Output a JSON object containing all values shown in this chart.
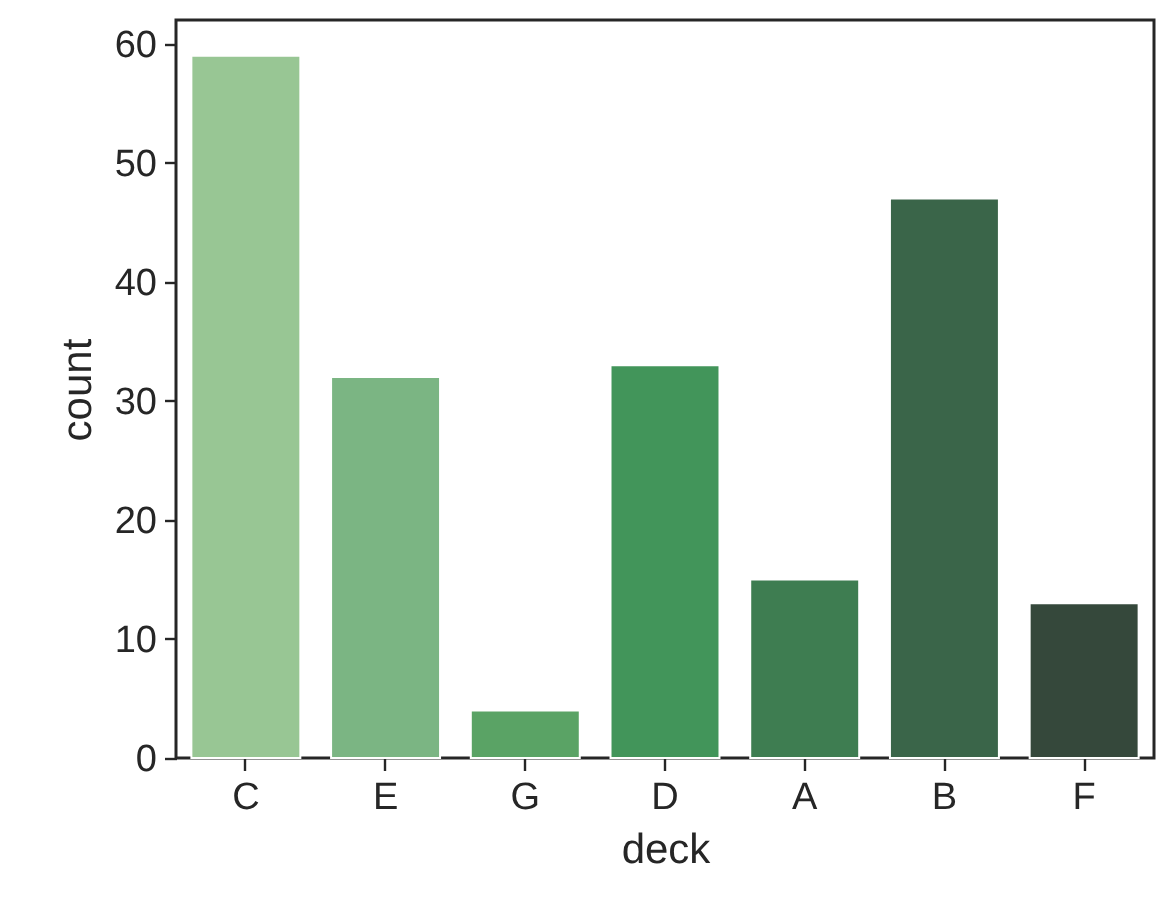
{
  "chart_data": {
    "type": "bar",
    "xlabel": "deck",
    "ylabel": "count",
    "categories": [
      "C",
      "E",
      "G",
      "D",
      "A",
      "B",
      "F"
    ],
    "values": [
      59,
      32,
      4,
      33,
      15,
      47,
      13
    ],
    "colors": [
      "#98c694",
      "#7bb583",
      "#5aa365",
      "#42955a",
      "#3e7d51",
      "#3a6549",
      "#35483b"
    ],
    "ylim": [
      0,
      62
    ],
    "yticks": [
      0,
      10,
      20,
      30,
      40,
      50,
      60
    ],
    "grid": false
  }
}
